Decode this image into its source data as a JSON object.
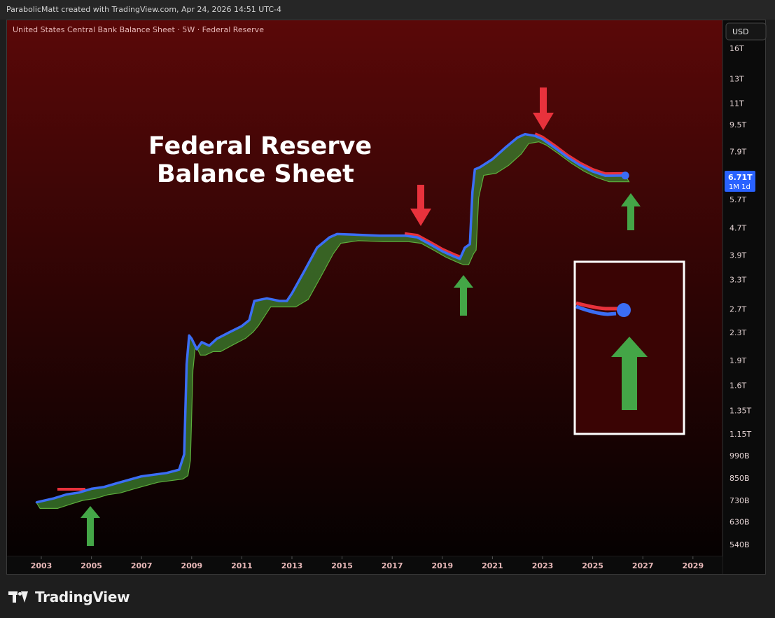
{
  "header": {
    "credit": "ParabolicMatt created with TradingView.com, Apr 24, 2026 14:51 UTC-4"
  },
  "chart_title": "United States Central Bank Balance Sheet · 5W · Federal Reserve",
  "overlay": {
    "line1": "Federal Reserve",
    "line2": "Balance Sheet"
  },
  "currency_label": "USD",
  "last_price": {
    "value": "6.71T",
    "interval": "1M 1d"
  },
  "footer": {
    "brand": "TradingView"
  },
  "colors": {
    "line": "#3b6ef5",
    "decline": "#e8323c",
    "fill": "#3a7a2c",
    "arrow_up": "#44a647",
    "arrow_down": "#e8323c",
    "price_label": "#2962ff"
  },
  "chart_data": {
    "type": "line",
    "scale": "log",
    "x_ticks": [
      "2003",
      "2005",
      "2007",
      "2009",
      "2011",
      "2013",
      "2015",
      "2017",
      "2019",
      "2021",
      "2023",
      "2025",
      "2027",
      "2029"
    ],
    "y_ticks": [
      "16T",
      "13T",
      "11T",
      "9.5T",
      "7.9T",
      "6.71T",
      "5.7T",
      "4.7T",
      "3.9T",
      "3.3T",
      "2.7T",
      "2.3T",
      "1.9T",
      "1.6T",
      "1.35T",
      "1.15T",
      "990B",
      "850B",
      "730B",
      "630B",
      "540B"
    ],
    "series": [
      {
        "values": [
          [
            2002.8,
            0.72
          ],
          [
            2003.5,
            0.74
          ],
          [
            2004.0,
            0.76
          ],
          [
            2004.5,
            0.77
          ],
          [
            2005.0,
            0.79
          ],
          [
            2005.5,
            0.8
          ],
          [
            2006.0,
            0.82
          ],
          [
            2006.5,
            0.84
          ],
          [
            2007.0,
            0.86
          ],
          [
            2007.5,
            0.87
          ],
          [
            2008.0,
            0.88
          ],
          [
            2008.5,
            0.9
          ],
          [
            2008.7,
            1.0
          ],
          [
            2008.8,
            1.85
          ],
          [
            2008.9,
            2.25
          ],
          [
            2009.0,
            2.2
          ],
          [
            2009.2,
            2.05
          ],
          [
            2009.4,
            2.15
          ],
          [
            2009.7,
            2.1
          ],
          [
            2010.0,
            2.2
          ],
          [
            2010.5,
            2.3
          ],
          [
            2011.0,
            2.4
          ],
          [
            2011.3,
            2.5
          ],
          [
            2011.5,
            2.85
          ],
          [
            2012.0,
            2.9
          ],
          [
            2012.5,
            2.85
          ],
          [
            2012.8,
            2.85
          ],
          [
            2013.0,
            3.0
          ],
          [
            2013.5,
            3.5
          ],
          [
            2014.0,
            4.1
          ],
          [
            2014.5,
            4.4
          ],
          [
            2014.8,
            4.5
          ],
          [
            2015.5,
            4.48
          ],
          [
            2016.5,
            4.45
          ],
          [
            2017.5,
            4.45
          ],
          [
            2018.0,
            4.4
          ],
          [
            2018.5,
            4.2
          ],
          [
            2019.0,
            4.0
          ],
          [
            2019.5,
            3.85
          ],
          [
            2019.7,
            3.8
          ],
          [
            2019.9,
            4.1
          ],
          [
            2020.1,
            4.2
          ],
          [
            2020.2,
            6.0
          ],
          [
            2020.3,
            7.0
          ],
          [
            2020.5,
            7.1
          ],
          [
            2021.0,
            7.5
          ],
          [
            2021.5,
            8.1
          ],
          [
            2022.0,
            8.7
          ],
          [
            2022.3,
            8.9
          ],
          [
            2022.7,
            8.8
          ],
          [
            2023.0,
            8.6
          ],
          [
            2023.5,
            8.1
          ],
          [
            2024.0,
            7.6
          ],
          [
            2024.5,
            7.2
          ],
          [
            2025.0,
            6.9
          ],
          [
            2025.5,
            6.7
          ],
          [
            2026.3,
            6.71
          ]
        ]
      }
    ]
  }
}
